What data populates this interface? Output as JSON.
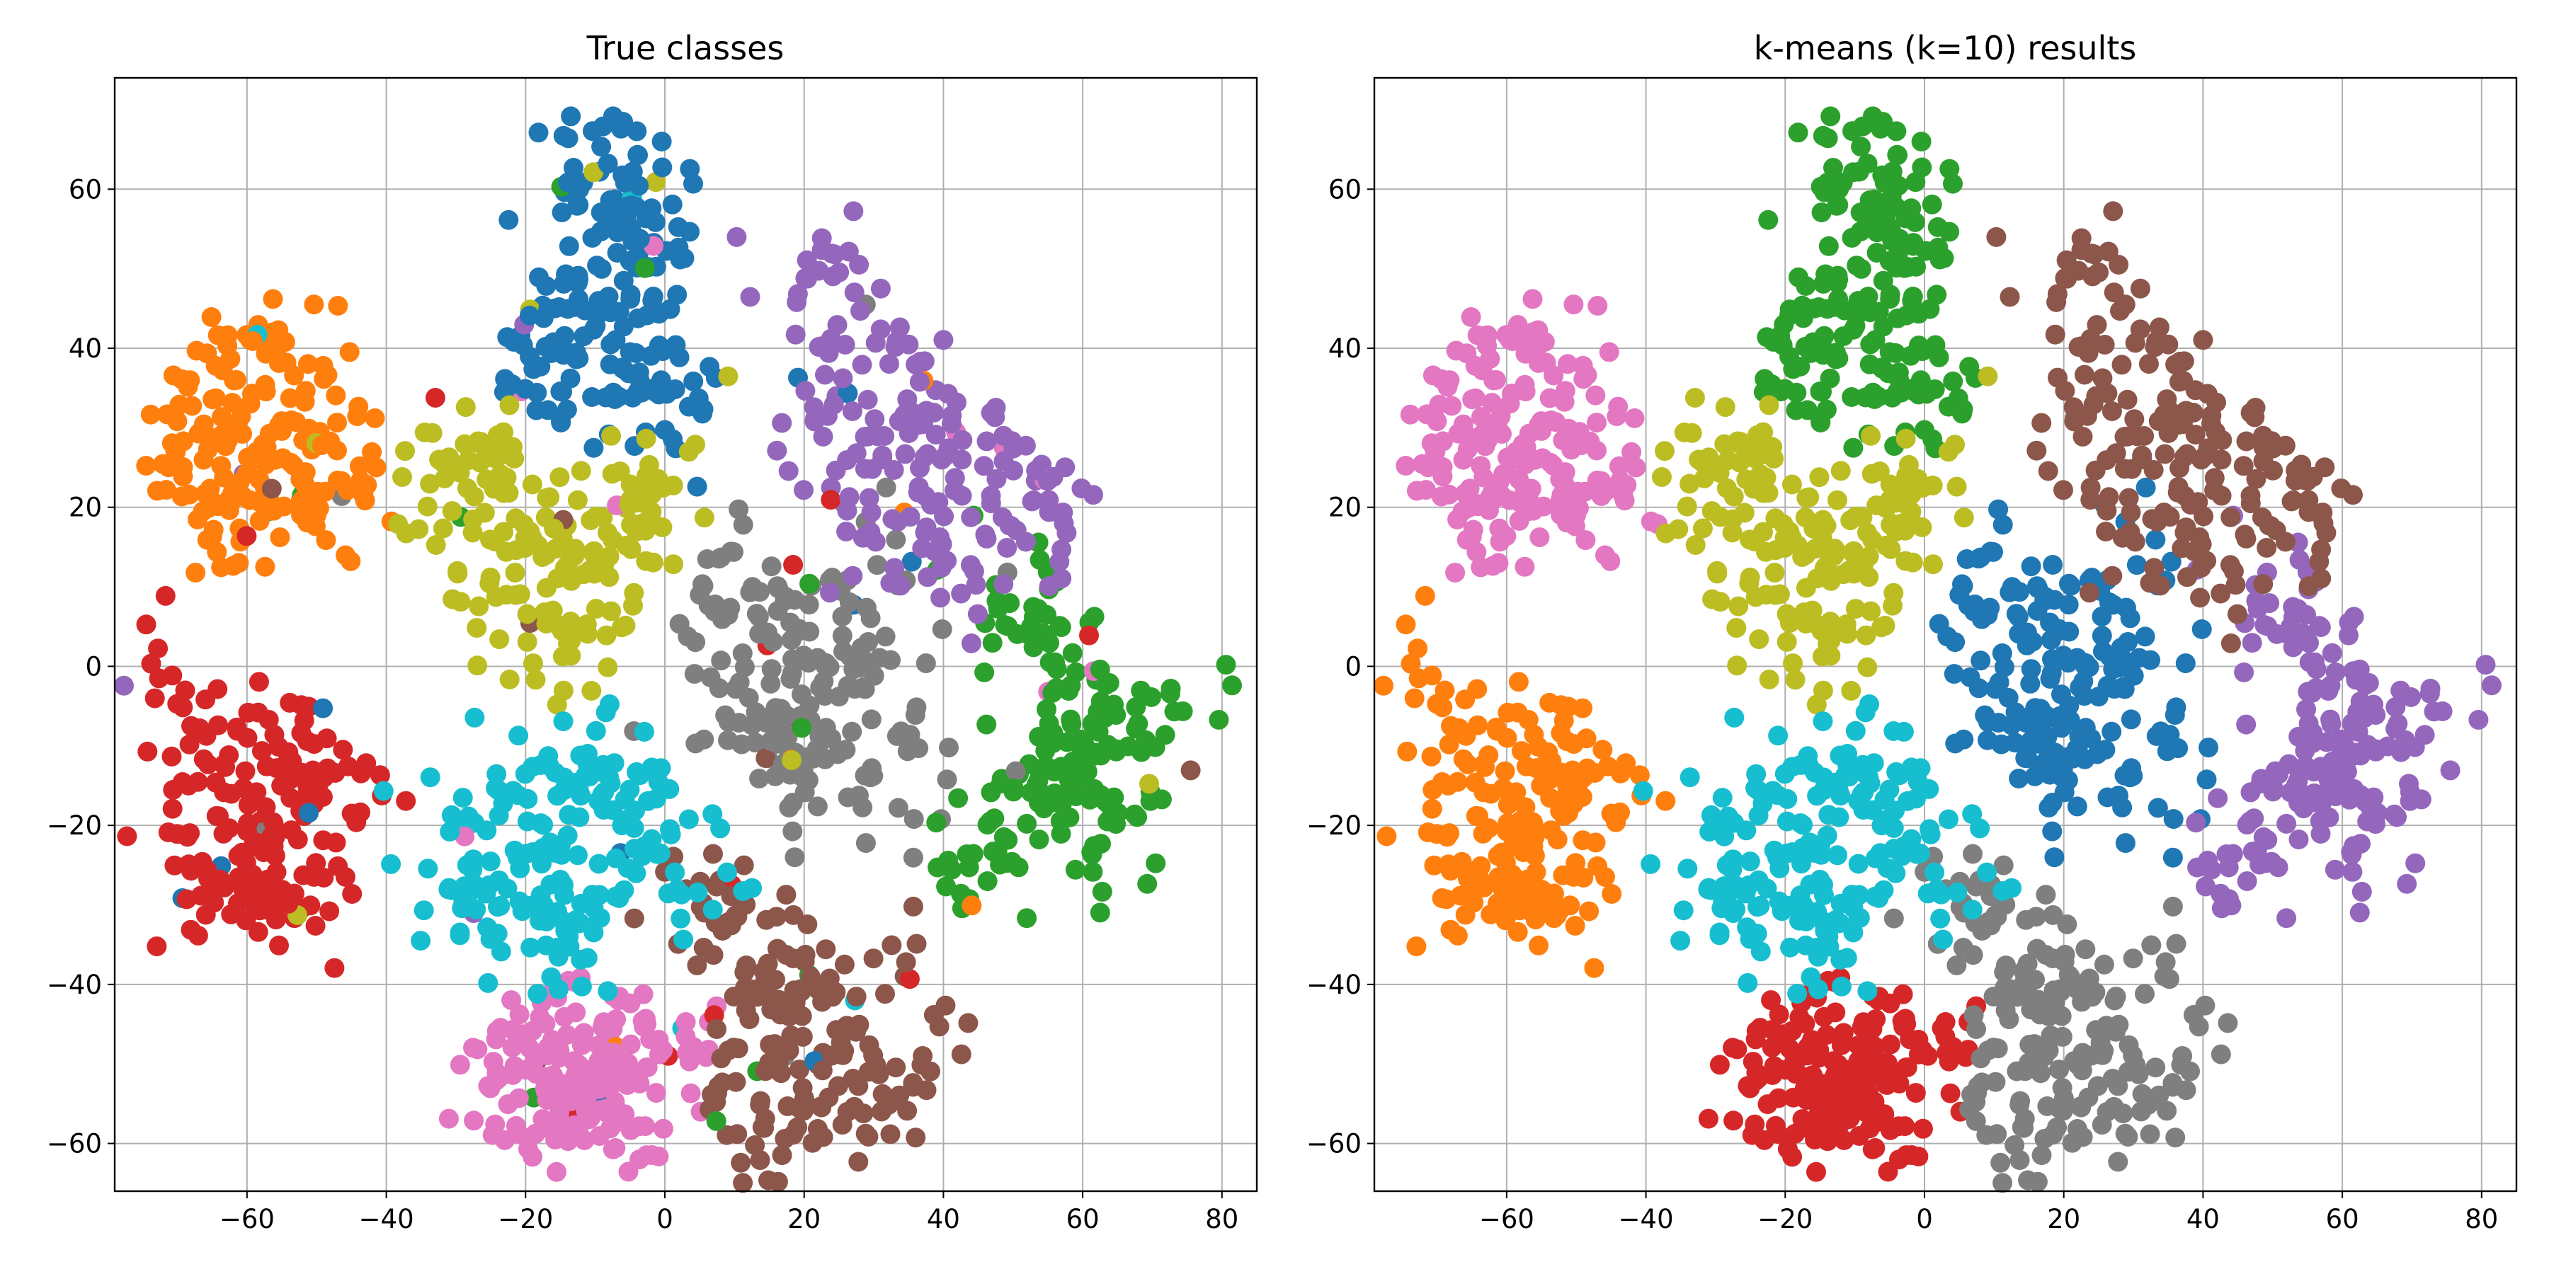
{
  "chart_data": [
    {
      "type": "scatter",
      "title": "True classes",
      "xlabel": "",
      "ylabel": "",
      "xlim": [
        -79,
        85
      ],
      "ylim": [
        -66,
        74
      ],
      "xticks": [
        -60,
        -40,
        -20,
        0,
        20,
        40,
        60,
        80
      ],
      "yticks": [
        -60,
        -40,
        -20,
        0,
        20,
        40,
        60
      ],
      "grid": true,
      "legend": "none",
      "point_source": "k-means (k=10) results",
      "point_palette": "tab10",
      "cluster_to_true_class": [
        7,
        3,
        0,
        6,
        2,
        4,
        1,
        5,
        8,
        9
      ],
      "class_colors": [
        "#1f77b4",
        "#ff7f0e",
        "#2ca02c",
        "#d62728",
        "#9467bd",
        "#8c564b",
        "#e377c2",
        "#7f7f7f",
        "#bcbd22",
        "#17becf"
      ],
      "series": [
        {
          "center": [
            -57,
            26
          ],
          "values": [
            [
              -70,
              27
            ],
            [
              -68,
              22
            ],
            [
              -62,
              38
            ],
            [
              -52,
              40
            ],
            [
              -46,
              28
            ],
            [
              -50,
              18
            ],
            [
              -58,
              14
            ],
            [
              -64,
              18
            ],
            [
              -56,
              30
            ],
            [
              -60,
              24
            ]
          ]
        },
        {
          "center": [
            5,
            -52
          ],
          "values": [
            [
              -22,
              -53
            ],
            [
              -18,
              -58
            ],
            [
              -8,
              -55
            ],
            [
              2,
              -50
            ],
            [
              10,
              -47
            ],
            [
              20,
              -44
            ],
            [
              30,
              -50
            ],
            [
              35,
              -47
            ],
            [
              15,
              -55
            ],
            [
              -12,
              -50
            ]
          ]
        },
        {
          "center": [
            -18,
            -27
          ],
          "values": [
            [
              -30,
              -28
            ],
            [
              -26,
              -33
            ],
            [
              -22,
              -20
            ],
            [
              -14,
              -15
            ],
            [
              -8,
              -28
            ],
            [
              -2,
              -18
            ],
            [
              2,
              -25
            ],
            [
              -18,
              -35
            ],
            [
              -24,
              -24
            ],
            [
              -6,
              -10
            ]
          ]
        },
        {
          "center": [
            -20,
            15
          ],
          "values": [
            [
              -32,
              5
            ],
            [
              -28,
              20
            ],
            [
              -18,
              25
            ],
            [
              -10,
              18
            ],
            [
              -6,
              22
            ],
            [
              -14,
              8
            ],
            [
              -24,
              12
            ],
            [
              -2,
              25
            ],
            [
              4,
              27
            ],
            [
              -20,
              15
            ]
          ]
        },
        {
          "center": [
            36,
            28
          ],
          "values": [
            [
              25,
              45
            ],
            [
              30,
              50
            ],
            [
              35,
              40
            ],
            [
              45,
              35
            ],
            [
              50,
              30
            ],
            [
              52,
              15
            ],
            [
              48,
              5
            ],
            [
              40,
              20
            ],
            [
              28,
              20
            ],
            [
              32,
              30
            ]
          ]
        },
        {
          "center": [
            -8,
            52
          ],
          "values": [
            [
              -10,
              62
            ],
            [
              -6,
              58
            ],
            [
              -2,
              55
            ],
            [
              -12,
              48
            ],
            [
              -20,
              40
            ],
            [
              -24,
              30
            ],
            [
              -8,
              35
            ],
            [
              -4,
              30
            ],
            [
              -15,
              40
            ],
            [
              -28,
              22
            ]
          ]
        },
        {
          "center": [
            -60,
            -18
          ],
          "values": [
            [
              -68,
              -8
            ],
            [
              -64,
              -15
            ],
            [
              -58,
              -25
            ],
            [
              -52,
              -30
            ],
            [
              -46,
              -26
            ],
            [
              -56,
              -10
            ],
            [
              -62,
              -30
            ],
            [
              -66,
              -20
            ],
            [
              -50,
              -15
            ],
            [
              -58,
              -18
            ]
          ]
        },
        {
          "center": [
            62,
            -12
          ],
          "values": [
            [
              70,
              -5
            ],
            [
              75,
              -10
            ],
            [
              65,
              0
            ],
            [
              60,
              -15
            ],
            [
              55,
              -20
            ],
            [
              50,
              -25
            ],
            [
              45,
              -22
            ],
            [
              62,
              -8
            ],
            [
              68,
              -15
            ],
            [
              58,
              -5
            ]
          ]
        },
        {
          "center": [
            10,
            -2
          ],
          "values": [
            [
              0,
              8
            ],
            [
              5,
              10
            ],
            [
              8,
              2
            ],
            [
              12,
              -5
            ],
            [
              16,
              -10
            ],
            [
              20,
              -4
            ],
            [
              14,
              5
            ],
            [
              6,
              -2
            ],
            [
              3,
              4
            ],
            [
              18,
              0
            ]
          ]
        },
        {
          "center": [
            34,
            5
          ],
          "values": [
            [
              22,
              40
            ],
            [
              26,
              35
            ],
            [
              30,
              25
            ],
            [
              34,
              22
            ],
            [
              38,
              15
            ],
            [
              36,
              0
            ],
            [
              34,
              -10
            ],
            [
              40,
              -5
            ],
            [
              60,
              22
            ],
            [
              28,
              30
            ]
          ]
        }
      ]
    },
    {
      "type": "scatter",
      "title": "k-means (k=10) results",
      "xlabel": "",
      "ylabel": "",
      "xlim": [
        -79,
        85
      ],
      "ylim": [
        -66,
        74
      ],
      "xticks": [
        -60,
        -40,
        -20,
        0,
        20,
        40,
        60,
        80
      ],
      "yticks": [
        -60,
        -40,
        -20,
        0,
        20,
        40,
        60
      ],
      "grid": true,
      "legend": "none",
      "point_palette": "tab10",
      "cluster_colors": [
        "#1f77b4",
        "#ff7f0e",
        "#2ca02c",
        "#d62728",
        "#9467bd",
        "#8c564b",
        "#e377c2",
        "#7f7f7f",
        "#bcbd22",
        "#17becf"
      ],
      "series": [
        {
          "center": [
            20,
            -3
          ],
          "values": [
            [
              8,
              10
            ],
            [
              12,
              6
            ],
            [
              15,
              2
            ],
            [
              18,
              -5
            ],
            [
              20,
              -10
            ],
            [
              22,
              -15
            ],
            [
              25,
              5
            ],
            [
              30,
              10
            ],
            [
              32,
              0
            ],
            [
              34,
              -15
            ],
            [
              28,
              -8
            ],
            [
              14,
              -8
            ]
          ]
        },
        {
          "center": [
            -61,
            -18
          ],
          "values": [
            [
              -70,
              -3
            ],
            [
              -66,
              -8
            ],
            [
              -64,
              -15
            ],
            [
              -60,
              -20
            ],
            [
              -58,
              -25
            ],
            [
              -55,
              -30
            ],
            [
              -50,
              -22
            ],
            [
              -48,
              -15
            ],
            [
              -52,
              -10
            ],
            [
              -62,
              -32
            ],
            [
              -66,
              -25
            ],
            [
              -56,
              -12
            ]
          ]
        },
        {
          "center": [
            -6,
            48
          ],
          "values": [
            [
              -10,
              64
            ],
            [
              -6,
              60
            ],
            [
              -2,
              58
            ],
            [
              -8,
              52
            ],
            [
              -4,
              50
            ],
            [
              -18,
              40
            ],
            [
              -12,
              36
            ],
            [
              -6,
              32
            ],
            [
              2,
              34
            ],
            [
              -16,
              42
            ],
            [
              -2,
              44
            ]
          ]
        },
        {
          "center": [
            -12,
            -52
          ],
          "values": [
            [
              -22,
              -52
            ],
            [
              -18,
              -56
            ],
            [
              -14,
              -58
            ],
            [
              -10,
              -55
            ],
            [
              -6,
              -52
            ],
            [
              -2,
              -50
            ],
            [
              2,
              -48
            ],
            [
              -16,
              -50
            ],
            [
              -8,
              -58
            ],
            [
              -12,
              -46
            ]
          ]
        },
        {
          "center": [
            58,
            -5
          ],
          "values": [
            [
              48,
              10
            ],
            [
              52,
              5
            ],
            [
              56,
              0
            ],
            [
              60,
              -5
            ],
            [
              64,
              -10
            ],
            [
              68,
              -12
            ],
            [
              72,
              -8
            ],
            [
              58,
              -15
            ],
            [
              50,
              -20
            ],
            [
              46,
              -25
            ],
            [
              62,
              -20
            ],
            [
              54,
              -10
            ]
          ]
        },
        {
          "center": [
            33,
            30
          ],
          "values": [
            [
              22,
              50
            ],
            [
              26,
              45
            ],
            [
              30,
              40
            ],
            [
              35,
              35
            ],
            [
              40,
              30
            ],
            [
              45,
              25
            ],
            [
              50,
              20
            ],
            [
              55,
              22
            ],
            [
              28,
              25
            ],
            [
              32,
              15
            ],
            [
              38,
              20
            ],
            [
              42,
              12
            ],
            [
              24,
              30
            ]
          ]
        },
        {
          "center": [
            -57,
            26
          ],
          "values": [
            [
              -70,
              28
            ],
            [
              -66,
              22
            ],
            [
              -62,
              38
            ],
            [
              -56,
              40
            ],
            [
              -52,
              32
            ],
            [
              -48,
              26
            ],
            [
              -54,
              18
            ],
            [
              -60,
              15
            ],
            [
              -64,
              30
            ],
            [
              -58,
              24
            ],
            [
              -50,
              20
            ]
          ]
        },
        {
          "center": [
            18,
            -45
          ],
          "values": [
            [
              6,
              -30
            ],
            [
              12,
              -35
            ],
            [
              16,
              -40
            ],
            [
              20,
              -45
            ],
            [
              24,
              -50
            ],
            [
              28,
              -55
            ],
            [
              32,
              -48
            ],
            [
              36,
              -42
            ],
            [
              10,
              -50
            ],
            [
              14,
              -56
            ],
            [
              18,
              -60
            ],
            [
              22,
              -38
            ]
          ]
        },
        {
          "center": [
            -18,
            14
          ],
          "values": [
            [
              -32,
              20
            ],
            [
              -28,
              28
            ],
            [
              -24,
              24
            ],
            [
              -20,
              18
            ],
            [
              -16,
              14
            ],
            [
              -12,
              10
            ],
            [
              -8,
              16
            ],
            [
              -4,
              20
            ],
            [
              0,
              25
            ],
            [
              -22,
              6
            ],
            [
              -14,
              2
            ],
            [
              -26,
              12
            ]
          ]
        },
        {
          "center": [
            -14,
            -24
          ],
          "values": [
            [
              -30,
              -25
            ],
            [
              -26,
              -30
            ],
            [
              -22,
              -20
            ],
            [
              -18,
              -15
            ],
            [
              -14,
              -22
            ],
            [
              -10,
              -28
            ],
            [
              -6,
              -20
            ],
            [
              -2,
              -15
            ],
            [
              2,
              -25
            ],
            [
              -20,
              -32
            ],
            [
              -12,
              -35
            ],
            [
              -8,
              -12
            ]
          ]
        }
      ]
    }
  ]
}
